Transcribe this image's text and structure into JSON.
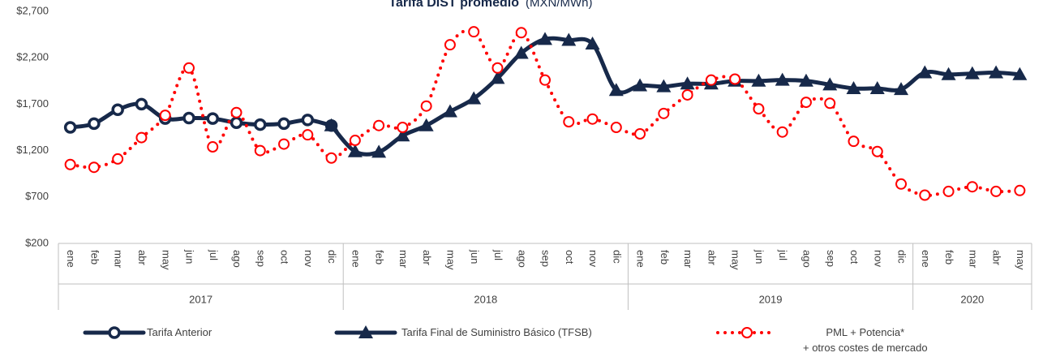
{
  "chart_data": {
    "type": "line",
    "title": "Tarifa DIST promedio",
    "subtitle": "(MXN/MWh)",
    "categories": [
      "ene",
      "feb",
      "mar",
      "abr",
      "may",
      "jun",
      "jul",
      "ago",
      "sep",
      "oct",
      "nov",
      "dic",
      "ene",
      "feb",
      "mar",
      "abr",
      "may",
      "jun",
      "jul",
      "ago",
      "sep",
      "oct",
      "nov",
      "dic",
      "ene",
      "feb",
      "mar",
      "abr",
      "may",
      "jun",
      "jul",
      "ago",
      "sep",
      "oct",
      "nov",
      "dic",
      "ene",
      "feb",
      "mar",
      "abr",
      "may"
    ],
    "x_groups": [
      {
        "label": "2017",
        "count": 12
      },
      {
        "label": "2018",
        "count": 12
      },
      {
        "label": "2019",
        "count": 12
      },
      {
        "label": "2020",
        "count": 5
      }
    ],
    "ylim": [
      200,
      2700
    ],
    "yticks": [
      {
        "value": 200,
        "label": "$200"
      },
      {
        "value": 700,
        "label": "$700"
      },
      {
        "value": 1200,
        "label": "$1,200"
      },
      {
        "value": 1700,
        "label": "$1,700"
      },
      {
        "value": 2200,
        "label": "$2,200"
      },
      {
        "value": 2700,
        "label": "$2,700"
      }
    ],
    "grid": false,
    "legend": "bottom",
    "series": [
      {
        "name": "Tarifa Anterior",
        "color": "#17294a",
        "marker": "circle",
        "line_style": "solid",
        "values": [
          1450,
          1490,
          1640,
          1700,
          1545,
          1550,
          1545,
          1500,
          1480,
          1490,
          1530,
          1470,
          null,
          null,
          null,
          null,
          null,
          null,
          null,
          null,
          null,
          null,
          null,
          null,
          null,
          null,
          null,
          null,
          null,
          null,
          null,
          null,
          null,
          null,
          null,
          null,
          null,
          null,
          null,
          null,
          null
        ]
      },
      {
        "name": "Tarifa Final de Suministro Básico (TFSB)",
        "color": "#17294a",
        "marker": "triangle",
        "line_style": "solid",
        "values": [
          null,
          null,
          null,
          null,
          null,
          null,
          null,
          null,
          null,
          null,
          null,
          1470,
          1190,
          1185,
          1360,
          1470,
          1620,
          1760,
          1980,
          2250,
          2400,
          2390,
          2350,
          1850,
          1900,
          1890,
          1920,
          1920,
          1950,
          1950,
          1960,
          1950,
          1910,
          1870,
          1870,
          1860,
          2040,
          2020,
          2030,
          2040,
          2020
        ]
      },
      {
        "name": "PML + Potencia*\n+ otros costes de mercado",
        "color": "#ff0000",
        "marker": "circle",
        "line_style": "dotted",
        "values": [
          1050,
          1020,
          1110,
          1340,
          1580,
          2090,
          1240,
          1610,
          1200,
          1270,
          1370,
          1120,
          1310,
          1470,
          1450,
          1680,
          2340,
          2480,
          2090,
          2470,
          1960,
          1510,
          1540,
          1450,
          1380,
          1600,
          1800,
          1960,
          1970,
          1650,
          1400,
          1720,
          1710,
          1300,
          1190,
          840,
          720,
          760,
          810,
          760,
          770
        ]
      }
    ]
  }
}
